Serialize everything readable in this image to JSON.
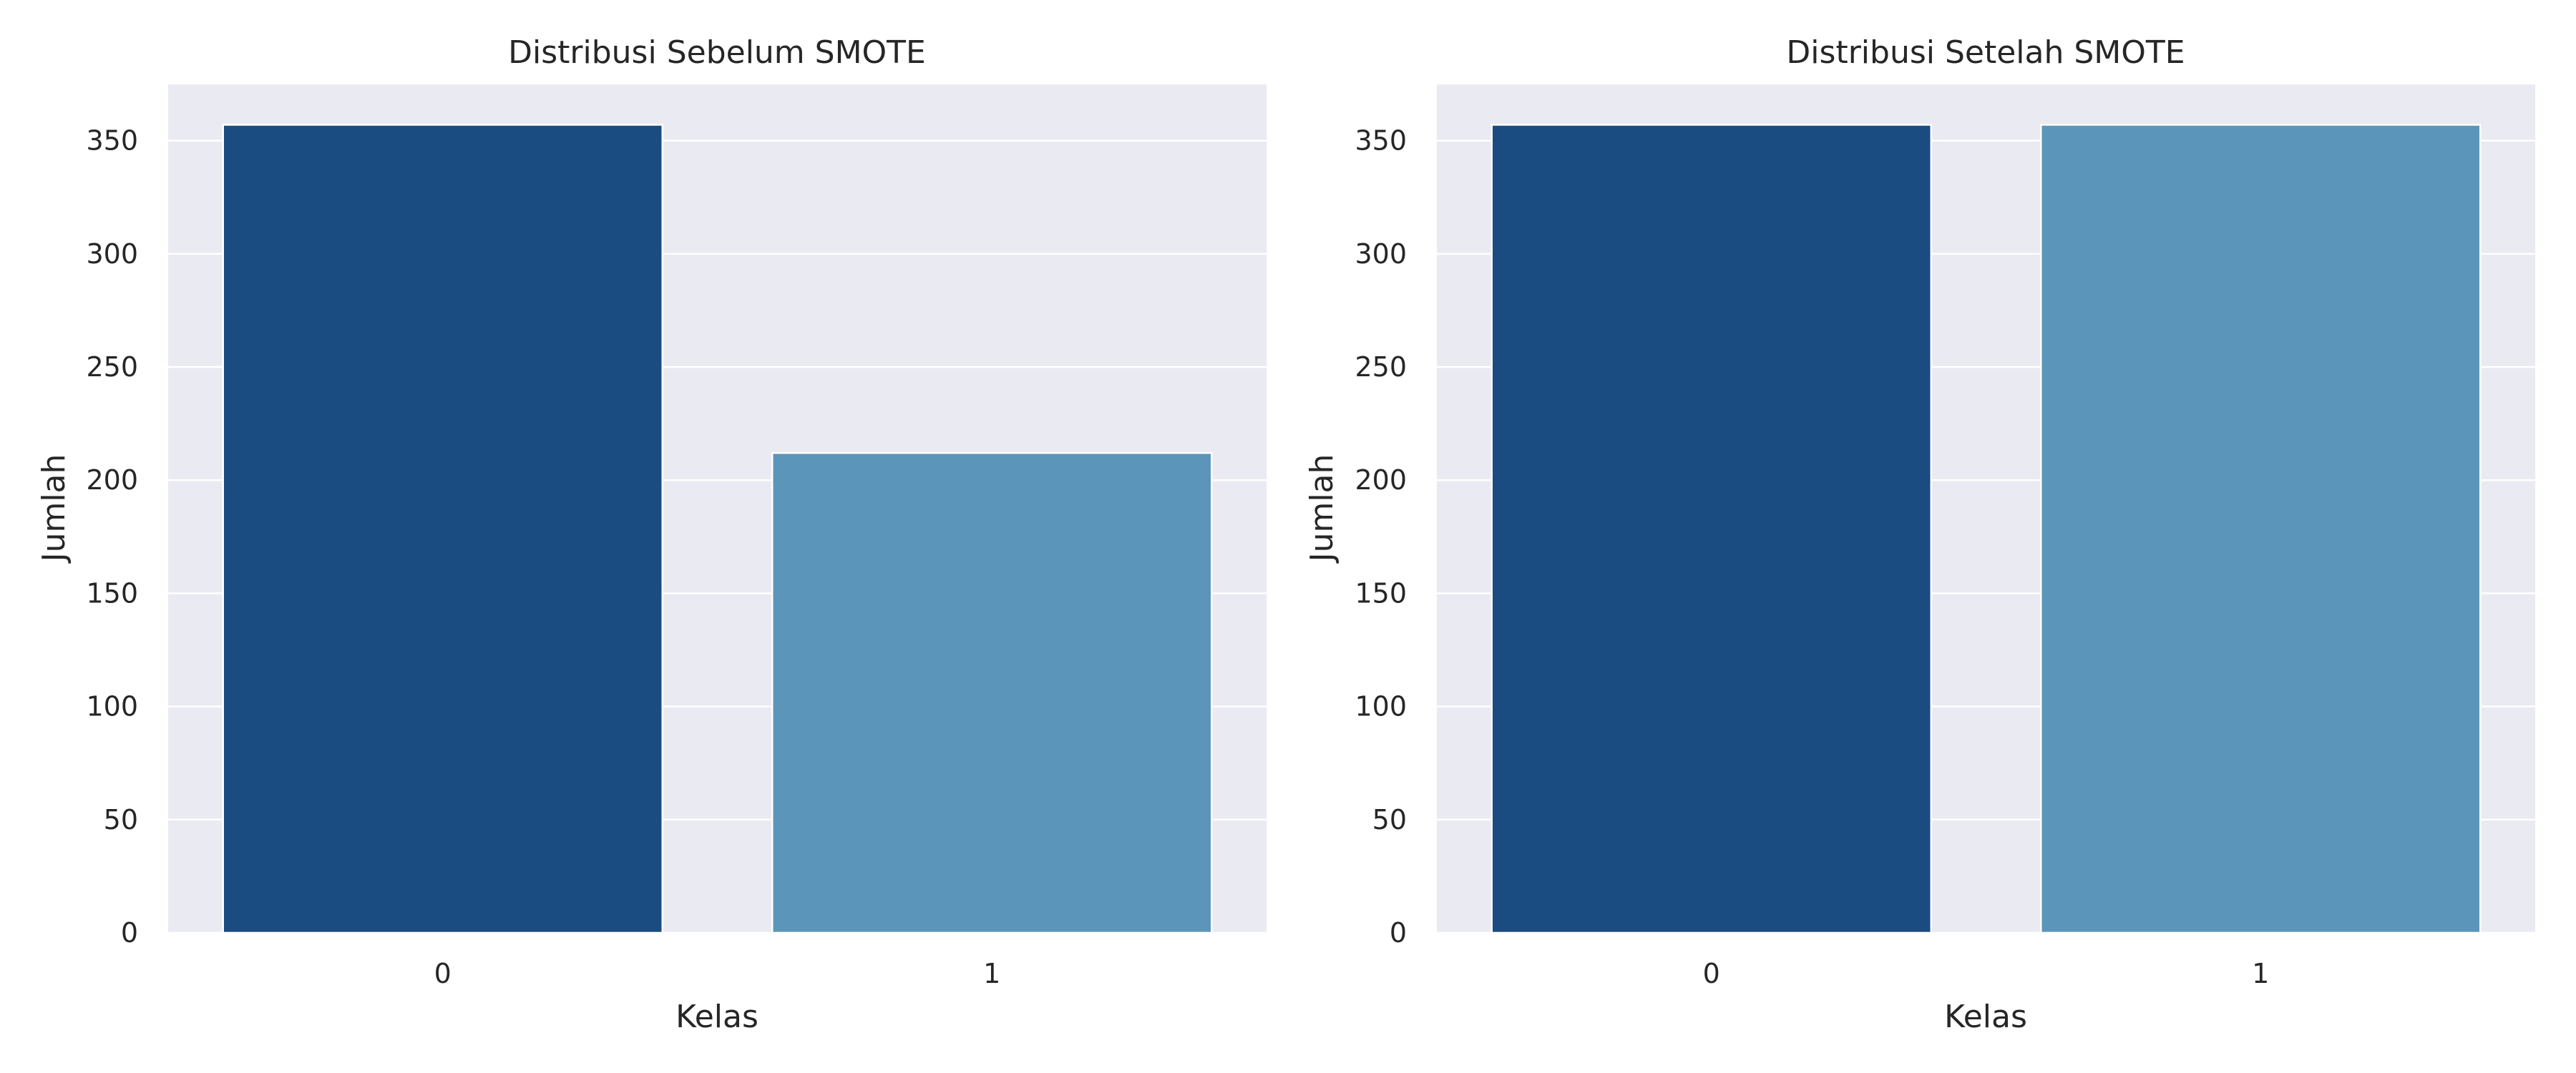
{
  "figure": {
    "background": "#ffffff",
    "plot_background": "#eaeaf2",
    "grid_color": "#ffffff"
  },
  "chart_data": [
    {
      "type": "bar",
      "title": "Distribusi Sebelum SMOTE",
      "xlabel": "Kelas",
      "ylabel": "Jumlah",
      "categories": [
        "0",
        "1"
      ],
      "values": [
        357,
        212
      ],
      "colors": [
        "#1a4c81",
        "#5b95ba"
      ],
      "ylim": [
        0,
        374.85
      ],
      "yticks": [
        0,
        50,
        100,
        150,
        200,
        250,
        300,
        350
      ],
      "grid": true,
      "legend": "none"
    },
    {
      "type": "bar",
      "title": "Distribusi Setelah SMOTE",
      "xlabel": "Kelas",
      "ylabel": "Jumlah",
      "categories": [
        "0",
        "1"
      ],
      "values": [
        357,
        357
      ],
      "colors": [
        "#1a4c81",
        "#5b95ba"
      ],
      "ylim": [
        0,
        374.85
      ],
      "yticks": [
        0,
        50,
        100,
        150,
        200,
        250,
        300,
        350
      ],
      "grid": true,
      "legend": "none"
    }
  ]
}
